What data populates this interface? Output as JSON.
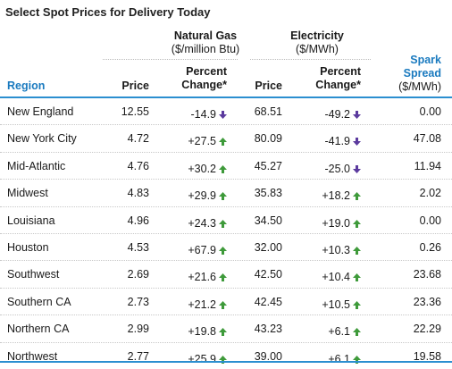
{
  "title": "Select Spot Prices for Delivery Today",
  "groups": {
    "natural_gas": {
      "name": "Natural Gas",
      "unit": "($/million Btu)"
    },
    "electricity": {
      "name": "Electricity",
      "unit": "($/MWh)"
    }
  },
  "headers": {
    "region": "Region",
    "price": "Price",
    "pct_line1": "Percent",
    "pct_line2": "Change*",
    "spark_line1": "Spark",
    "spark_line2": "Spread",
    "spark_unit": "($/MWh)"
  },
  "colors": {
    "accent": "#1a7abf",
    "up": "#3e9a3a",
    "down": "#5b3a9e"
  },
  "rows": [
    {
      "region": "New England",
      "ng_price": "12.55",
      "ng_pct": "-14.9",
      "ng_dir": "down",
      "el_price": "68.51",
      "el_pct": "-49.2",
      "el_dir": "down",
      "spark": "0.00"
    },
    {
      "region": "New York City",
      "ng_price": "4.72",
      "ng_pct": "+27.5",
      "ng_dir": "up",
      "el_price": "80.09",
      "el_pct": "-41.9",
      "el_dir": "down",
      "spark": "47.08"
    },
    {
      "region": "Mid-Atlantic",
      "ng_price": "4.76",
      "ng_pct": "+30.2",
      "ng_dir": "up",
      "el_price": "45.27",
      "el_pct": "-25.0",
      "el_dir": "down",
      "spark": "11.94"
    },
    {
      "region": "Midwest",
      "ng_price": "4.83",
      "ng_pct": "+29.9",
      "ng_dir": "up",
      "el_price": "35.83",
      "el_pct": "+18.2",
      "el_dir": "up",
      "spark": "2.02"
    },
    {
      "region": "Louisiana",
      "ng_price": "4.96",
      "ng_pct": "+24.3",
      "ng_dir": "up",
      "el_price": "34.50",
      "el_pct": "+19.0",
      "el_dir": "up",
      "spark": "0.00"
    },
    {
      "region": "Houston",
      "ng_price": "4.53",
      "ng_pct": "+67.9",
      "ng_dir": "up",
      "el_price": "32.00",
      "el_pct": "+10.3",
      "el_dir": "up",
      "spark": "0.26"
    },
    {
      "region": "Southwest",
      "ng_price": "2.69",
      "ng_pct": "+21.6",
      "ng_dir": "up",
      "el_price": "42.50",
      "el_pct": "+10.4",
      "el_dir": "up",
      "spark": "23.68"
    },
    {
      "region": "Southern CA",
      "ng_price": "2.73",
      "ng_pct": "+21.2",
      "ng_dir": "up",
      "el_price": "42.45",
      "el_pct": "+10.5",
      "el_dir": "up",
      "spark": "23.36"
    },
    {
      "region": "Northern CA",
      "ng_price": "2.99",
      "ng_pct": "+19.8",
      "ng_dir": "up",
      "el_price": "43.23",
      "el_pct": "+6.1",
      "el_dir": "up",
      "spark": "22.29"
    },
    {
      "region": "Northwest",
      "ng_price": "2.77",
      "ng_pct": "+25.9",
      "ng_dir": "up",
      "el_price": "39.00",
      "el_pct": "+6.1",
      "el_dir": "up",
      "spark": "19.58"
    }
  ]
}
